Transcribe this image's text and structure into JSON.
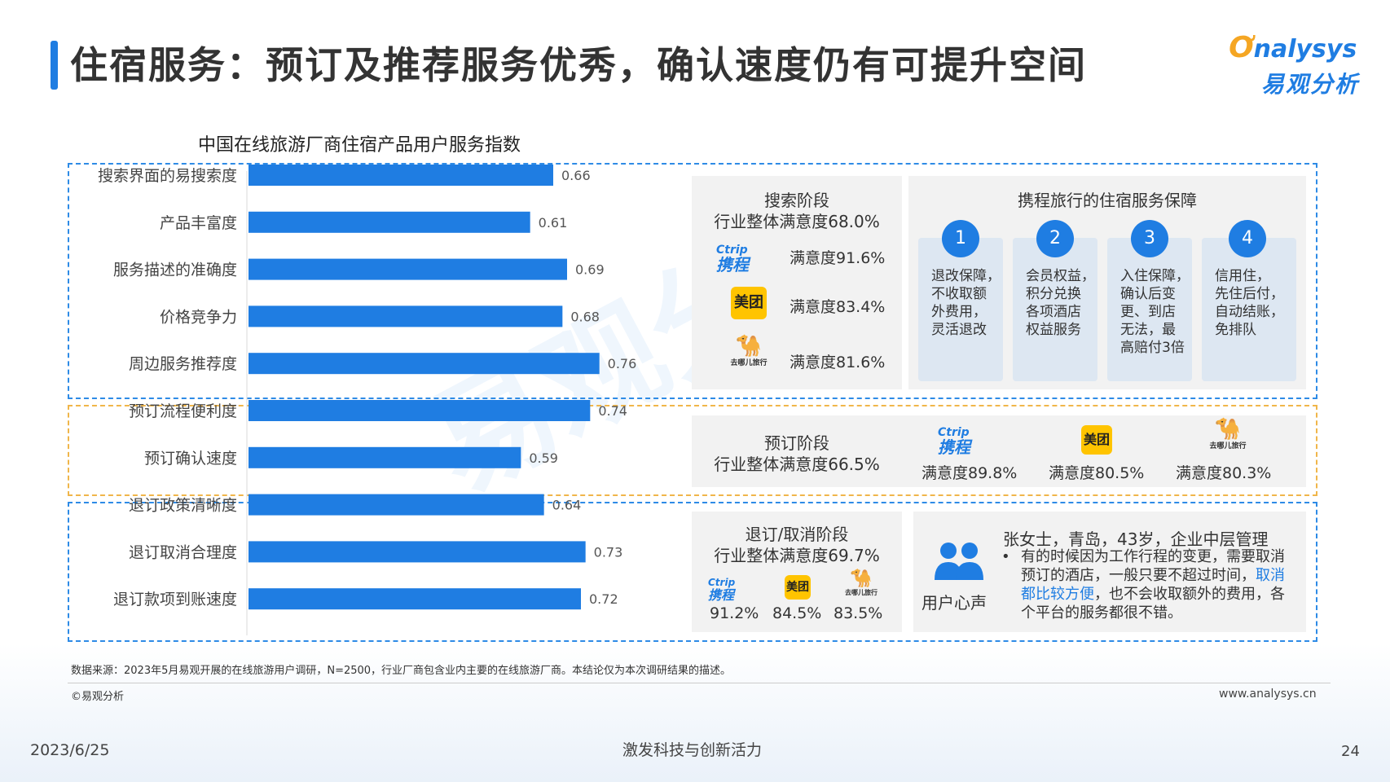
{
  "header": {
    "title": "住宿服务：预订及推荐服务优秀，确认速度仍有可提升空间",
    "logo_en_o": "Ơ",
    "logo_en_rest": "nalysys",
    "logo_cn": "易观分析"
  },
  "watermark": "易观分析",
  "chart_data": {
    "type": "bar",
    "orientation": "horizontal",
    "title": "中国在线旅游厂商住宿产品用户服务指数",
    "categories": [
      "搜索界面的易搜索度",
      "产品丰富度",
      "服务描述的准确度",
      "价格竞争力",
      "周边服务推荐度",
      "预订流程便利度",
      "预订确认速度",
      "退订政策清晰度",
      "退订取消合理度",
      "退订款项到账速度"
    ],
    "values": [
      0.66,
      0.61,
      0.69,
      0.68,
      0.76,
      0.74,
      0.59,
      0.64,
      0.73,
      0.72
    ],
    "value_labels": [
      "0.66",
      "0.61",
      "0.69",
      "0.68",
      "0.76",
      "0.74",
      "0.59",
      "0.64",
      "0.73",
      "0.72"
    ],
    "xlim": [
      0,
      0.9
    ],
    "color": "#1f7de2",
    "grid": false,
    "xlabel": "",
    "ylabel": ""
  },
  "search_stage": {
    "title_line1": "搜索阶段",
    "title_line2": "行业整体满意度68.0%",
    "items": [
      {
        "brand": "ctrip",
        "sat": "满意度91.6%"
      },
      {
        "brand": "meituan",
        "sat": "满意度83.4%"
      },
      {
        "brand": "qunar",
        "sat": "满意度81.6%"
      }
    ]
  },
  "brands": {
    "ctrip_en": "Ctrip",
    "ctrip_cn": "携程",
    "meituan": "美团",
    "qunar_glyph": "🐪",
    "qunar_cn": "去哪儿旅行"
  },
  "guarantee": {
    "title": "携程旅行的住宿服务保障",
    "items": [
      {
        "num": "1",
        "lines": [
          "退改保障，",
          "不收取额",
          "外费用，",
          "灵活退改"
        ]
      },
      {
        "num": "2",
        "lines": [
          "会员权益，",
          "积分兑换",
          "各项酒店",
          "权益服务"
        ]
      },
      {
        "num": "3",
        "lines": [
          "入住保障，",
          "确认后变",
          "更、到店",
          "无法，最",
          "高赔付3倍"
        ]
      },
      {
        "num": "4",
        "lines": [
          "信用住，",
          "先住后付，",
          "自动结账，",
          "免排队"
        ]
      }
    ]
  },
  "booking_stage": {
    "title_line1": "预订阶段",
    "title_line2": "行业整体满意度66.5%",
    "items": [
      {
        "brand": "ctrip",
        "sat": "满意度89.8%"
      },
      {
        "brand": "meituan",
        "sat": "满意度80.5%"
      },
      {
        "brand": "qunar",
        "sat": "满意度80.3%"
      }
    ]
  },
  "cancel_stage": {
    "title_line1": "退订/取消阶段",
    "title_line2": "行业整体满意度69.7%",
    "items": [
      {
        "brand": "ctrip",
        "sat": "91.2%"
      },
      {
        "brand": "meituan",
        "sat": "84.5%"
      },
      {
        "brand": "qunar",
        "sat": "83.5%"
      }
    ]
  },
  "user_voice": {
    "label": "用户心声",
    "person": "张女士，青岛，43岁，企业中层管理",
    "bullet": "•",
    "quote_before": "有的时候因为工作行程的变更，需要取消预订的酒店，一般只要不超过时间，",
    "quote_highlight": "取消都比较方便",
    "quote_after": "，也不会收取额外的费用，各个平台的服务都很不错。"
  },
  "footer": {
    "source": "数据来源：2023年5月易观开展的在线旅游用户调研，N=2500，行业厂商包含业内主要的在线旅游厂商。本结论仅为本次调研结果的描述。",
    "copyright": "©易观分析",
    "website": "www.analysys.cn",
    "date": "2023/6/25",
    "slogan": "激发科技与创新活力",
    "page": "24"
  }
}
